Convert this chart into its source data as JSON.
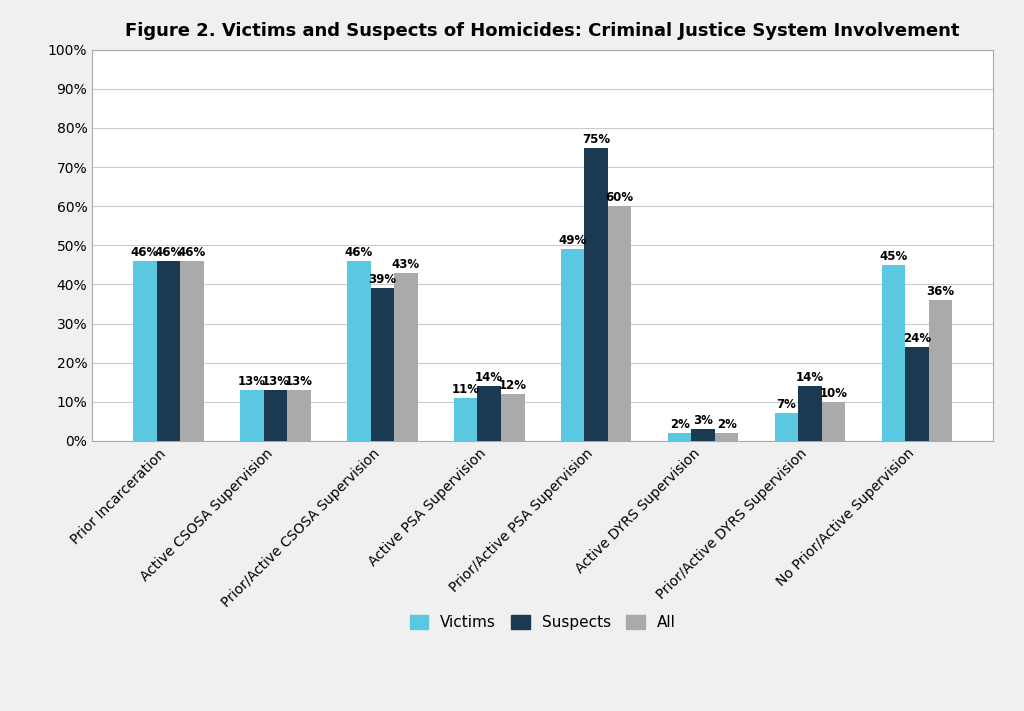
{
  "title": "Figure 2. Victims and Suspects of Homicides: Criminal Justice System Involvement",
  "categories": [
    "Prior Incarceration",
    "Active CSOSA Supervision",
    "Prior/Active CSOSA Supervision",
    "Active PSA Supervision",
    "Prior/Active PSA Supervision",
    "Active DYRS Supervision",
    "Prior/Active DYRS Supervision",
    "No Prior/Active Supervision"
  ],
  "victims": [
    46,
    13,
    46,
    11,
    49,
    2,
    7,
    45
  ],
  "suspects": [
    46,
    13,
    39,
    14,
    75,
    3,
    14,
    24
  ],
  "all": [
    46,
    13,
    43,
    12,
    60,
    2,
    10,
    36
  ],
  "color_victims": "#5BC8E2",
  "color_suspects": "#1B3A52",
  "color_all": "#AAAAAA",
  "ylim": [
    0,
    100
  ],
  "yticks": [
    0,
    10,
    20,
    30,
    40,
    50,
    60,
    70,
    80,
    90,
    100
  ],
  "ytick_labels": [
    "0%",
    "10%",
    "20%",
    "30%",
    "40%",
    "50%",
    "60%",
    "70%",
    "80%",
    "90%",
    "100%"
  ],
  "legend_labels": [
    "Victims",
    "Suspects",
    "All"
  ],
  "bar_width": 0.22,
  "title_fontsize": 13,
  "label_fontsize": 8.5,
  "tick_fontsize": 10,
  "legend_fontsize": 11,
  "bg_color": "#FFFFFF",
  "plot_bg_color": "#FFFFFF",
  "grid_color": "#CCCCCC",
  "frame_color": "#AAAAAA"
}
